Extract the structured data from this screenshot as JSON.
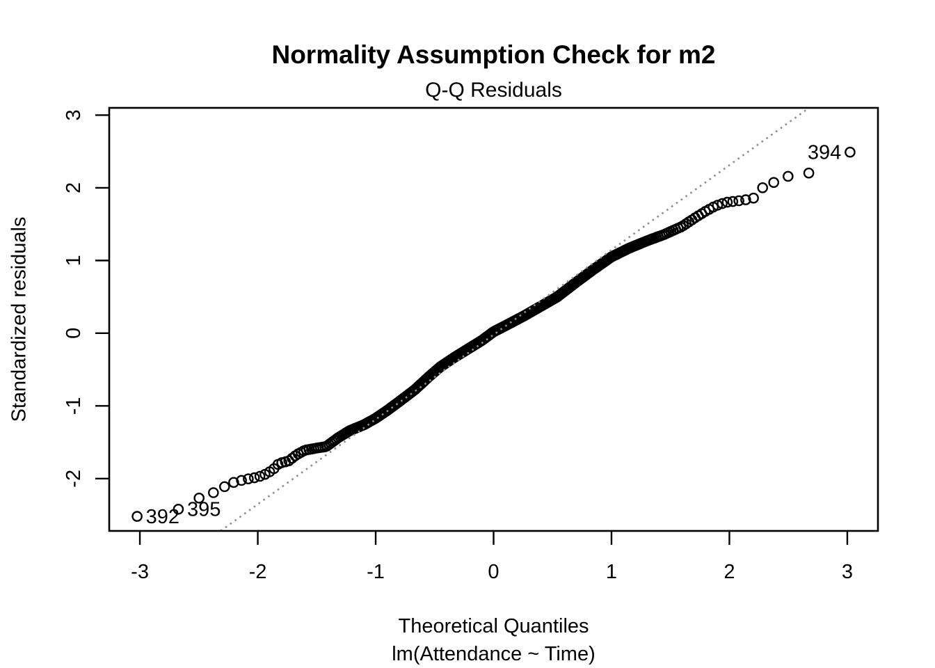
{
  "figure": {
    "title": "Normality Assumption Check for m2",
    "subtitle": "Q-Q Residuals",
    "x_axis_title": "Theoretical Quantiles",
    "x_axis_subtitle": "lm(Attendance ~ Time)",
    "y_axis_title": "Standardized residuals"
  },
  "chart_data": {
    "type": "scatter",
    "title": "Normality Assumption Check for m2",
    "subtitle": "Q-Q Residuals",
    "xlabel": "Theoretical Quantiles",
    "xlabel_line2": "lm(Attendance ~ Time)",
    "ylabel": "Standardized residuals",
    "xlim": [
      -3.26,
      3.26
    ],
    "ylim": [
      -2.72,
      3.1
    ],
    "x_ticks": [
      -3,
      -2,
      -1,
      0,
      1,
      2,
      3
    ],
    "y_ticks": [
      -2,
      -1,
      0,
      1,
      2,
      3
    ],
    "grid": false,
    "legend": null,
    "n_points": 400,
    "marker": "open-circle",
    "colors": {
      "points": "#000000",
      "reference_line": "#8c8c8c",
      "text": "#000000",
      "background": "#ffffff"
    },
    "reference_line": {
      "style": "dotted",
      "slope": 1.166,
      "intercept": -0.02
    },
    "qq_curve_control_points": [
      [
        -3.02,
        -2.52
      ],
      [
        -2.67,
        -2.42
      ],
      [
        -2.5,
        -2.27
      ],
      [
        -2.37,
        -2.19
      ],
      [
        -2.28,
        -2.11
      ],
      [
        -2.2,
        -2.05
      ],
      [
        -2.1,
        -2.01
      ],
      [
        -2.0,
        -1.98
      ],
      [
        -1.92,
        -1.93
      ],
      [
        -1.86,
        -1.86
      ],
      [
        -1.82,
        -1.79
      ],
      [
        -1.74,
        -1.76
      ],
      [
        -1.67,
        -1.67
      ],
      [
        -1.6,
        -1.61
      ],
      [
        -1.5,
        -1.58
      ],
      [
        -1.42,
        -1.56
      ],
      [
        -1.32,
        -1.44
      ],
      [
        -1.22,
        -1.34
      ],
      [
        -1.1,
        -1.26
      ],
      [
        -1.0,
        -1.17
      ],
      [
        -0.9,
        -1.06
      ],
      [
        -0.8,
        -0.94
      ],
      [
        -0.67,
        -0.78
      ],
      [
        -0.55,
        -0.6
      ],
      [
        -0.45,
        -0.46
      ],
      [
        -0.33,
        -0.33
      ],
      [
        -0.2,
        -0.2
      ],
      [
        -0.1,
        -0.1
      ],
      [
        0.0,
        0.02
      ],
      [
        0.12,
        0.12
      ],
      [
        0.26,
        0.24
      ],
      [
        0.4,
        0.37
      ],
      [
        0.54,
        0.5
      ],
      [
        0.7,
        0.7
      ],
      [
        0.85,
        0.88
      ],
      [
        1.0,
        1.05
      ],
      [
        1.15,
        1.17
      ],
      [
        1.3,
        1.27
      ],
      [
        1.45,
        1.36
      ],
      [
        1.6,
        1.47
      ],
      [
        1.72,
        1.6
      ],
      [
        1.8,
        1.68
      ],
      [
        1.88,
        1.75
      ],
      [
        1.97,
        1.8
      ],
      [
        2.07,
        1.82
      ],
      [
        2.2,
        1.85
      ],
      [
        2.28,
        2.0
      ],
      [
        2.37,
        2.07
      ],
      [
        2.5,
        2.16
      ],
      [
        2.67,
        2.2
      ],
      [
        3.02,
        2.49
      ]
    ],
    "labeled_points": [
      {
        "label": "392",
        "x": -3.02,
        "y": -2.52,
        "label_side": "right"
      },
      {
        "label": "395",
        "x": -2.67,
        "y": -2.42,
        "label_side": "right"
      },
      {
        "label": "394",
        "x": 3.02,
        "y": 2.49,
        "label_side": "left"
      }
    ]
  }
}
